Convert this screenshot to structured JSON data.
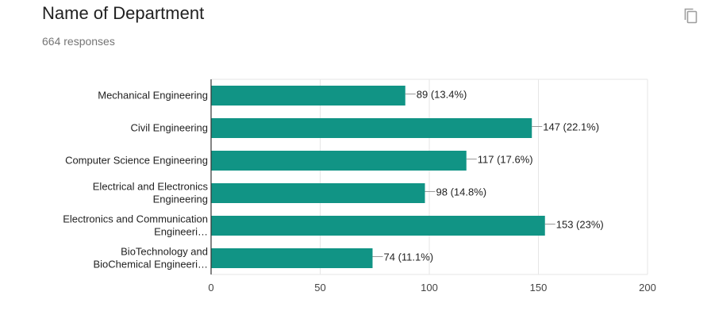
{
  "header": {
    "title": "Name of Department",
    "responses": "664 responses",
    "copy_icon": "copy-icon"
  },
  "colors": {
    "bar": "#119485",
    "grid": "#e6e6e6",
    "axis": "#333333",
    "connector": "#999999"
  },
  "chart_data": {
    "type": "bar",
    "orientation": "horizontal",
    "categories": [
      [
        "Mechanical Engineering"
      ],
      [
        "Civil Engineering"
      ],
      [
        "Computer Science Engineering"
      ],
      [
        "Electrical and Electronics",
        "Engineering"
      ],
      [
        "Electronics and Communication",
        "Engineeri…"
      ],
      [
        "BioTechnology and",
        "BioChemical Engineeri…"
      ]
    ],
    "values": [
      89,
      147,
      117,
      98,
      153,
      74
    ],
    "data_labels": [
      "89 (13.4%)",
      "147 (22.1%)",
      "117 (17.6%)",
      "98 (14.8%)",
      "153 (23%)",
      "74 (11.1%)"
    ],
    "xlim": [
      0,
      200
    ],
    "xticks": [
      0,
      50,
      100,
      150,
      200
    ],
    "grid": true
  }
}
